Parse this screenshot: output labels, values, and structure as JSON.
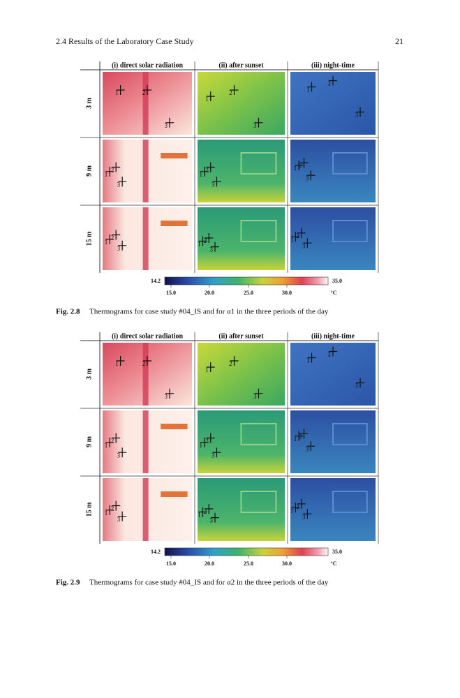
{
  "header": {
    "section": "2.4   Results of the Laboratory Case Study",
    "page": "21"
  },
  "figures": [
    {
      "columns": [
        "(i) direct solar radiation",
        "(ii) after sunset",
        "(iii) night-time"
      ],
      "rows": [
        "3 m",
        "9 m",
        "15 m"
      ],
      "points": [
        "1",
        "2",
        "3"
      ],
      "colorbar": {
        "min": "14.2",
        "max": "35.0",
        "ticks": [
          "15.0",
          "20.0",
          "25.0",
          "30.0"
        ],
        "unit": "°C"
      },
      "caption": {
        "label": "Fig. 2.8",
        "text": "Thermograms for case study #04_IS and for α1 in the three periods of the day"
      }
    },
    {
      "columns": [
        "(i) direct solar radiation",
        "(ii) after sunset",
        "(iii) night-time"
      ],
      "rows": [
        "3 m",
        "9 m",
        "15 m"
      ],
      "points": [
        "1",
        "2",
        "3"
      ],
      "colorbar": {
        "min": "14.2",
        "max": "35.0",
        "ticks": [
          "15.0",
          "20.0",
          "25.0",
          "30.0"
        ],
        "unit": "°C"
      },
      "caption": {
        "label": "Fig. 2.9",
        "text": "Thermograms for case study #04_IS and for α2 in the three periods of the day"
      }
    }
  ]
}
